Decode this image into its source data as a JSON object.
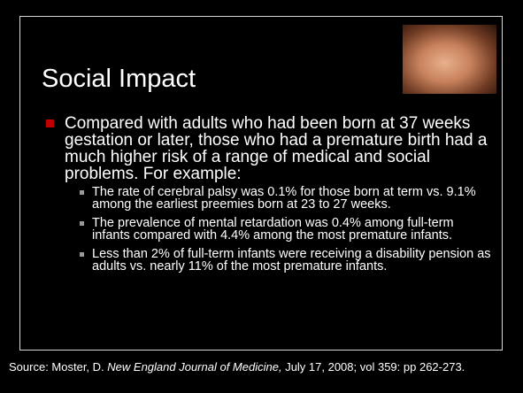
{
  "slide": {
    "title": "Social Impact",
    "bullet": {
      "text": "Compared with adults who had been born at 37 weeks gestation or later, those who had a premature birth had a much higher risk of a range of medical and social problems. For example:",
      "sub_bullets": [
        "The rate of cerebral palsy was 0.1% for those born at term vs. 9.1% among the earliest preemies born at 23 to 27 weeks.",
        "The prevalence of mental retardation was 0.4% among full-term infants compared with 4.4% among the most premature infants.",
        "Less than 2% of full-term infants were receiving a disability pension as adults vs. nearly 11% of the most premature infants."
      ]
    },
    "source": {
      "before": "Source: Moster, D.",
      "journal": "New England Journal of Medicine,",
      "after": "July 17, 2008; vol 359: pp 262-273."
    }
  }
}
